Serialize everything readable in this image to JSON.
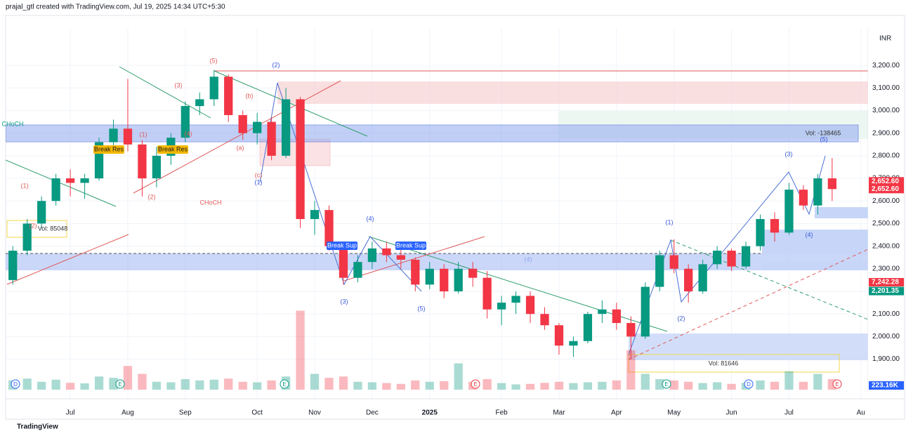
{
  "chart_data": {
    "type": "candlestick",
    "header": "prajal_gtl created with TradingView.com, Jul 19, 2025 14:34 UTC+5:30",
    "footer": "TradingView",
    "currency": "INR",
    "up_color": "#089981",
    "down_color": "#f23645",
    "grid": true,
    "categories": [
      null,
      null,
      null,
      null,
      "Jul",
      null,
      null,
      null,
      "Aug",
      null,
      null,
      null,
      "Sep",
      null,
      null,
      null,
      null,
      "Oct",
      null,
      null,
      null,
      "Nov",
      null,
      null,
      null,
      "Dec",
      null,
      null,
      null,
      "2025",
      null,
      null,
      null,
      null,
      "Feb",
      null,
      null,
      null,
      "Mar",
      null,
      null,
      null,
      "Apr",
      null,
      null,
      null,
      "May",
      null,
      null,
      null,
      "Jun",
      null,
      null,
      null,
      "Jul",
      null,
      null,
      null,
      null,
      "Au"
    ],
    "open": [
      2250,
      2380,
      2500,
      2600,
      2700,
      2680,
      2700,
      2860,
      2920,
      2850,
      2700,
      2800,
      2880,
      3020,
      3050,
      3150,
      2980,
      2900,
      2950,
      2800,
      3050,
      2520,
      2560,
      2400,
      2260,
      2330,
      2390,
      2360,
      2340,
      2230,
      2300,
      2200,
      2300,
      2260,
      2120,
      2150,
      2180,
      2100,
      2050,
      1960,
      1980,
      2100,
      2120,
      2060,
      2000,
      2220,
      2360,
      2300,
      2200,
      2320,
      2380,
      2310,
      2400,
      2520,
      2460,
      2650,
      2580,
      2700,
      null,
      null
    ],
    "high": [
      2400,
      2520,
      2620,
      2720,
      2740,
      2720,
      2880,
      2960,
      3140,
      2870,
      2840,
      2900,
      3040,
      3080,
      3180,
      3160,
      3000,
      2990,
      2970,
      3100,
      3060,
      2600,
      2580,
      2420,
      2360,
      2420,
      2420,
      2400,
      2350,
      2330,
      2320,
      2330,
      2330,
      2290,
      2180,
      2200,
      2200,
      2130,
      2060,
      2000,
      2110,
      2160,
      2150,
      2090,
      2240,
      2380,
      2430,
      2320,
      2340,
      2400,
      2390,
      2420,
      2540,
      2550,
      2680,
      2670,
      2720,
      2790,
      null,
      null
    ],
    "low": [
      2230,
      2360,
      2480,
      2580,
      2620,
      2610,
      2690,
      2820,
      2820,
      2620,
      2660,
      2760,
      2860,
      2980,
      3020,
      2950,
      2870,
      2850,
      2780,
      2790,
      2480,
      2450,
      2380,
      2230,
      2240,
      2300,
      2330,
      2300,
      2200,
      2210,
      2170,
      2190,
      2220,
      2080,
      2050,
      2100,
      2060,
      2030,
      1920,
      1910,
      1970,
      2060,
      2030,
      1900,
      1990,
      2200,
      2280,
      2150,
      2190,
      2300,
      2290,
      2300,
      2380,
      2420,
      2450,
      2560,
      2540,
      2600,
      null,
      null
    ],
    "close": [
      2380,
      2500,
      2600,
      2700,
      2680,
      2700,
      2860,
      2920,
      2850,
      2700,
      2800,
      2880,
      3020,
      3050,
      3150,
      2980,
      2900,
      2950,
      2800,
      3050,
      2520,
      2560,
      2400,
      2260,
      2330,
      2390,
      2360,
      2340,
      2230,
      2300,
      2200,
      2300,
      2260,
      2120,
      2150,
      2180,
      2100,
      2050,
      1960,
      1980,
      2100,
      2120,
      2060,
      2000,
      2220,
      2360,
      2300,
      2200,
      2320,
      2380,
      2310,
      2400,
      2520,
      2460,
      2650,
      2580,
      2700,
      2652.6,
      null,
      null
    ],
    "volume": [
      350,
      420,
      300,
      380,
      260,
      240,
      500,
      450,
      900,
      600,
      300,
      280,
      400,
      350,
      380,
      420,
      300,
      280,
      350,
      500,
      3000,
      600,
      450,
      500,
      300,
      280,
      250,
      220,
      350,
      300,
      320,
      1000,
      300,
      400,
      250,
      200,
      220,
      260,
      300,
      250,
      280,
      300,
      350,
      1500,
      600,
      400,
      350,
      300,
      250,
      280,
      220,
      260,
      350,
      300,
      700,
      300,
      600,
      400,
      null,
      null
    ],
    "vlim": [
      0,
      3600
    ],
    "ylim": [
      1765,
      3365
    ],
    "yticks": [
      {
        "value": 1900,
        "label": "1,900.00"
      },
      {
        "value": 2000,
        "label": "2,000.00"
      },
      {
        "value": 2100,
        "label": "2,100.00"
      },
      {
        "value": 2200,
        "label": "2,200.00"
      },
      {
        "value": 2300,
        "label": "2,300.00"
      },
      {
        "value": 2400,
        "label": "2,400.00"
      },
      {
        "value": 2500,
        "label": "2,500.00"
      },
      {
        "value": 2600,
        "label": "2,600.00"
      },
      {
        "value": 2700,
        "label": "2,700.00"
      },
      {
        "value": 2800,
        "label": "2,800.00"
      },
      {
        "value": 2900,
        "label": "2,900.00"
      },
      {
        "value": 3000,
        "label": "3,000.00"
      },
      {
        "value": 3100,
        "label": "3,100.00"
      },
      {
        "value": 3200,
        "label": "3,200.00"
      }
    ],
    "price_tags": [
      {
        "value": 2652.6,
        "label": "2,652.60",
        "color": "#f23645"
      },
      {
        "value": 2652.6,
        "label": "2,652.60",
        "color": "#f23645"
      },
      {
        "value": 2201.35,
        "label": "2,201.35",
        "color": "#089981"
      }
    ],
    "indicator_tag": "7,242.28",
    "volume_tag": "223.16K",
    "annotations": [
      "CHoCH",
      "(1)",
      "(2)",
      "(1)",
      "(2)",
      "(3)",
      "(4)",
      "(5)",
      "(a)",
      "(b)",
      "(c)",
      "(1)",
      "(2)",
      "CHoCH",
      "(3)",
      "(4)",
      "(5)",
      "(1)",
      "(2)",
      "(3)",
      "(4)",
      "(5)",
      "(4)",
      "Break Res",
      "Break Res",
      "Break Sup",
      "Break Sup",
      "Vol: 85048",
      "Vol: -138465",
      "Vol: 81646"
    ],
    "events": [
      "D",
      "E",
      "E",
      "E",
      "E",
      "D",
      "E"
    ]
  }
}
